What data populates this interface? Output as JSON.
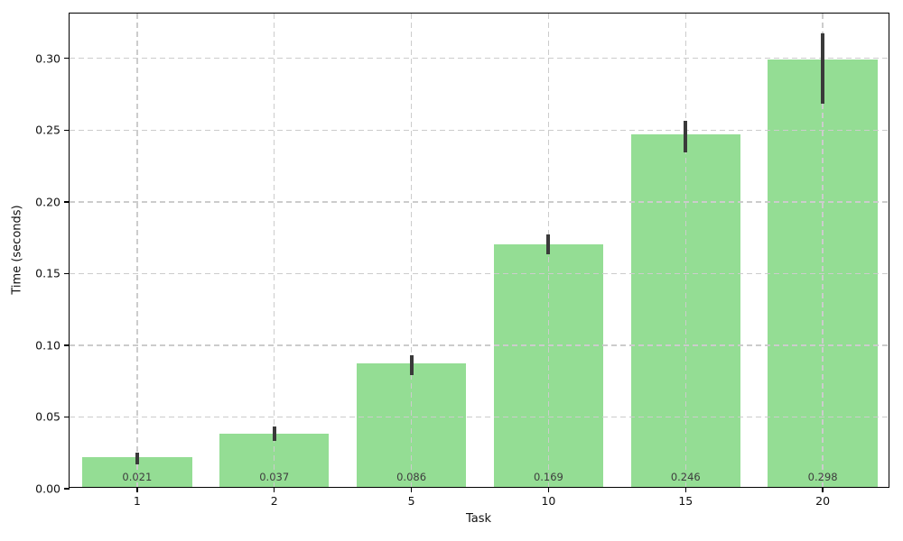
{
  "chart_data": {
    "type": "bar",
    "title": "",
    "xlabel": "Task",
    "ylabel": "Time (seconds)",
    "categories": [
      "1",
      "2",
      "5",
      "10",
      "15",
      "20"
    ],
    "values": [
      0.021,
      0.037,
      0.086,
      0.169,
      0.246,
      0.298
    ],
    "value_labels": [
      "0.021",
      "0.037",
      "0.086",
      "0.169",
      "0.246",
      "0.298"
    ],
    "error_low": [
      0.016,
      0.032,
      0.078,
      0.162,
      0.233,
      0.267
    ],
    "error_high": [
      0.024,
      0.042,
      0.092,
      0.176,
      0.255,
      0.316
    ],
    "ylim": [
      0,
      0.3313
    ],
    "yticks": [
      0.0,
      0.05,
      0.1,
      0.15,
      0.2,
      0.25,
      0.3
    ],
    "ytick_labels": [
      "0.00",
      "0.05",
      "0.10",
      "0.15",
      "0.20",
      "0.25",
      "0.30"
    ],
    "grid": true,
    "grid_style": "dashed",
    "grid_axes": "both",
    "legend": "none",
    "colors": {
      "bar_fill": "#94DD94",
      "error_bar": "#3A3A3A",
      "grid_line": "#CCCCCC",
      "value_label_text": "#3D3D3D",
      "axis_text": "#111111",
      "spine": "#000000",
      "background": "#FFFFFF"
    },
    "bar_width_units": 0.8,
    "x_margin_units": 0.493
  }
}
